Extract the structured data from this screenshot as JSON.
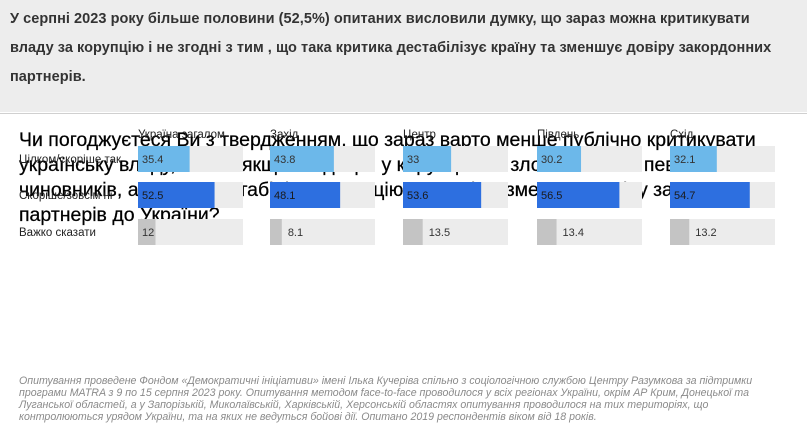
{
  "intro": {
    "text": "У серпні 2023 року більше половини (52,5%) опитаних висловили думку, що зараз можна критикувати владу за корупцію і не  згодні з тим , що така критика дестабілізує країну та зменшує довіру закордонних партнерів."
  },
  "chart_data": {
    "type": "bar",
    "title": "Чи погоджуєтеся Ви з твердженням, що зараз варто менше публічно критикувати українську владу, навіть якщо є підозри у корупційних зловживаннях певних чиновників, адже це дестабілізує ситуацію в країні та зменшує довіру закордонних партнерів до України?",
    "orientation": "horizontal",
    "layout": "small-multiples",
    "panels": [
      "Україна загалом",
      "Захід",
      "Центр",
      "Південь",
      "Схід"
    ],
    "categories": [
      "Цілком/скоріше так",
      "Скоріше/зовсім ні",
      "Важко сказати"
    ],
    "category_colors": [
      "#6cb8ea",
      "#2d6fe0",
      "#c4c4c4"
    ],
    "track_color": "#ececec",
    "xlim": [
      0,
      100
    ],
    "values": [
      [
        35.4,
        52.5,
        12
      ],
      [
        43.8,
        48.1,
        8.1
      ],
      [
        33,
        53.6,
        13.5
      ],
      [
        30.2,
        56.5,
        13.4
      ],
      [
        32.1,
        54.7,
        13.2
      ]
    ],
    "value_labels": [
      [
        "35.4",
        "52.5",
        "12"
      ],
      [
        "43.8",
        "48.1",
        "8.1"
      ],
      [
        "33",
        "53.6",
        "13.5"
      ],
      [
        "30.2",
        "56.5",
        "13.4"
      ],
      [
        "32.1",
        "54.7",
        "13.2"
      ]
    ]
  },
  "footnote": {
    "text": "Опитування проведене Фондом «Демократичні ініціативи» імені Ілька Кучеріва спільно з соціологічною службою Центру Разумкова за підтримки програми MATRA з 9 по 15 серпня 2023 року. Опитування методом face-to-face проводилося у всіх регіонах України, окрім АР Крим, Донецької та Луганської областей, а у Запорізькій, Миколаївській, Харківській, Херсонській областях опитування проводилося на тих територіях, що контролюються урядом України, та на яких не ведуться бойові дії. Опитано 2019 респондентів віком від 18 років."
  }
}
